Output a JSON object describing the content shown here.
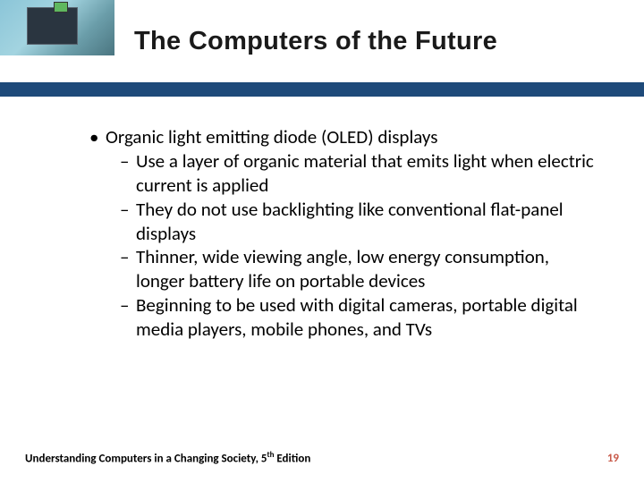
{
  "title": "The Computers of the Future",
  "main_bullet": "Organic light emitting diode (OLED) displays",
  "sub_bullets": [
    "Use a layer of organic material that emits light when electric current is applied",
    "They do not use backlighting like conventional flat-panel displays",
    "Thinner, wide viewing angle, low energy consumption, longer battery life on portable devices",
    "Beginning to be used with digital cameras, portable digital media players, mobile phones, and TVs"
  ],
  "footer_book": "Understanding Computers in a Changing Society, 5",
  "footer_sup": "th",
  "footer_edition": " Edition",
  "page_number": "19",
  "colors": {
    "blue_bar": "#1e4a7a",
    "page_num": "#c85a4a",
    "text": "#000000",
    "background": "#ffffff"
  }
}
